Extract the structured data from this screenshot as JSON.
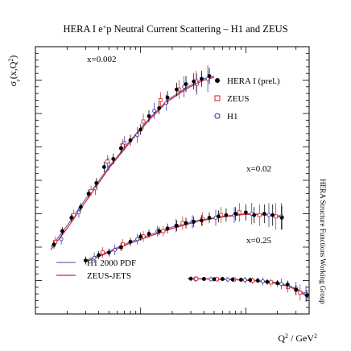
{
  "chart_data": {
    "type": "scatter",
    "title": "HERA I e⁺p Neutral Current Scattering – H1 and ZEUS",
    "title_parts": {
      "pre": "HERA I e",
      "sup": "+",
      "post": "p Neutral Current Scattering – H1 and ZEUS"
    },
    "ylabel": {
      "base": "σ",
      "sub": "r",
      "post": "(x,Q",
      "sup": "2",
      "close": ")"
    },
    "xlabel": {
      "base": "Q",
      "sup": "2",
      "post": " / GeV",
      "sup2": "2"
    },
    "side_label": "HERA Structure Functions Working Group",
    "xscale": "log",
    "xlim": [
      1,
      400
    ],
    "ylim": [
      0,
      1
    ],
    "grid": false,
    "legend_position": "top-right",
    "legend": [
      "HERA I (prel.)",
      "ZEUS",
      "H1"
    ],
    "curve_legend": [
      "H1 2000 PDF",
      "ZEUS-JETS"
    ],
    "annotations": [
      "x=0.002",
      "x=0.02",
      "x=0.25"
    ],
    "colors": {
      "hera": "#000000",
      "zeus": "#cc2222",
      "h1": "#2222aa",
      "h1_pdf_line": "#6b6bb8",
      "zeus_jets_line": "#dd2233"
    },
    "bins": [
      {
        "label": "x=0.002",
        "hera": {
          "x": [
            1.5,
            1.8,
            2.2,
            2.7,
            3.2,
            3.8,
            4.5,
            5.5,
            6.5,
            8,
            10,
            12,
            15,
            18,
            22,
            27,
            32,
            38,
            45
          ],
          "y": [
            0.26,
            0.31,
            0.36,
            0.4,
            0.45,
            0.49,
            0.55,
            0.58,
            0.62,
            0.65,
            0.69,
            0.74,
            0.77,
            0.81,
            0.84,
            0.86,
            0.87,
            0.88,
            0.89
          ],
          "err": [
            0.015,
            0.015,
            0.015,
            0.015,
            0.015,
            0.018,
            0.02,
            0.02,
            0.02,
            0.02,
            0.02,
            0.022,
            0.022,
            0.024,
            0.025,
            0.03,
            0.03,
            0.03,
            0.03
          ]
        },
        "zeus": {
          "x": [
            1.6,
            2.4,
            3.5,
            5,
            7,
            11,
            16,
            24,
            35
          ],
          "y": [
            0.27,
            0.37,
            0.46,
            0.57,
            0.63,
            0.72,
            0.8,
            0.84,
            0.87
          ],
          "err": [
            0.02,
            0.02,
            0.02,
            0.025,
            0.025,
            0.03,
            0.03,
            0.035,
            0.04
          ]
        },
        "h1": {
          "x": [
            1.7,
            2.5,
            3.6,
            4.8,
            6.8,
            9,
            13,
            17,
            25,
            33,
            42
          ],
          "y": [
            0.28,
            0.38,
            0.47,
            0.56,
            0.64,
            0.67,
            0.76,
            0.79,
            0.85,
            0.86,
            0.88
          ],
          "err": [
            0.02,
            0.02,
            0.025,
            0.025,
            0.025,
            0.03,
            0.03,
            0.03,
            0.04,
            0.04,
            0.05
          ]
        },
        "h1_pdf": {
          "x": [
            1.4,
            2,
            3,
            5,
            8,
            12,
            18,
            28,
            40,
            50
          ],
          "y": [
            0.25,
            0.33,
            0.43,
            0.55,
            0.65,
            0.73,
            0.8,
            0.85,
            0.88,
            0.89
          ]
        },
        "zeus_jets": {
          "x": [
            1.4,
            2,
            3,
            5,
            8,
            12,
            18,
            28,
            40,
            50
          ],
          "y": [
            0.24,
            0.32,
            0.42,
            0.545,
            0.645,
            0.725,
            0.795,
            0.845,
            0.875,
            0.885
          ]
        }
      },
      {
        "label": "x=0.02",
        "hera": {
          "x": [
            3,
            4,
            5,
            6.5,
            8,
            10,
            12,
            15,
            18,
            22,
            27,
            32,
            38,
            45,
            55,
            65,
            80,
            100,
            120,
            150,
            180,
            220
          ],
          "y": [
            0.2,
            0.22,
            0.23,
            0.25,
            0.27,
            0.29,
            0.3,
            0.31,
            0.32,
            0.33,
            0.34,
            0.345,
            0.35,
            0.36,
            0.365,
            0.37,
            0.375,
            0.38,
            0.37,
            0.375,
            0.37,
            0.36
          ],
          "err": [
            0.015,
            0.015,
            0.015,
            0.015,
            0.015,
            0.015,
            0.015,
            0.015,
            0.018,
            0.02,
            0.02,
            0.02,
            0.02,
            0.02,
            0.022,
            0.025,
            0.025,
            0.03,
            0.03,
            0.035,
            0.04,
            0.045
          ]
        },
        "zeus": {
          "x": [
            4.5,
            7,
            11,
            17,
            26,
            40,
            60,
            90,
            140,
            200
          ],
          "y": [
            0.23,
            0.26,
            0.29,
            0.31,
            0.34,
            0.355,
            0.37,
            0.38,
            0.37,
            0.365
          ],
          "err": [
            0.02,
            0.02,
            0.02,
            0.02,
            0.025,
            0.025,
            0.03,
            0.035,
            0.04,
            0.05
          ]
        },
        "h1": {
          "x": [
            3.5,
            5.5,
            9,
            14,
            21,
            30,
            50,
            75,
            110,
            160,
            210
          ],
          "y": [
            0.21,
            0.24,
            0.28,
            0.31,
            0.33,
            0.345,
            0.36,
            0.37,
            0.375,
            0.37,
            0.365
          ],
          "err": [
            0.02,
            0.02,
            0.02,
            0.02,
            0.025,
            0.025,
            0.03,
            0.03,
            0.04,
            0.045,
            0.05
          ]
        },
        "h1_pdf": {
          "x": [
            3,
            5,
            8,
            12,
            20,
            35,
            60,
            100,
            160,
            230
          ],
          "y": [
            0.2,
            0.235,
            0.27,
            0.295,
            0.325,
            0.35,
            0.365,
            0.375,
            0.372,
            0.365
          ]
        },
        "zeus_jets": {
          "x": [
            3,
            5,
            8,
            12,
            20,
            35,
            60,
            100,
            160,
            230
          ],
          "y": [
            0.195,
            0.23,
            0.265,
            0.29,
            0.32,
            0.347,
            0.363,
            0.373,
            0.37,
            0.362
          ]
        }
      },
      {
        "label": "x=0.25",
        "hera": {
          "x": [
            30,
            40,
            50,
            60,
            75,
            90,
            110,
            130,
            160,
            200,
            250,
            300,
            380
          ],
          "y": [
            0.132,
            0.131,
            0.13,
            0.131,
            0.129,
            0.128,
            0.127,
            0.125,
            0.12,
            0.115,
            0.11,
            0.09,
            0.07
          ],
          "err": [
            0.008,
            0.008,
            0.008,
            0.008,
            0.008,
            0.008,
            0.009,
            0.01,
            0.01,
            0.012,
            0.015,
            0.018,
            0.02
          ]
        },
        "zeus": {
          "x": [
            35,
            55,
            80,
            120,
            180,
            260,
            340
          ],
          "y": [
            0.132,
            0.13,
            0.129,
            0.125,
            0.118,
            0.1,
            0.08
          ],
          "err": [
            0.01,
            0.01,
            0.01,
            0.012,
            0.015,
            0.02,
            0.03
          ]
        },
        "h1": {
          "x": [
            32,
            45,
            65,
            95,
            140,
            210,
            290,
            360
          ],
          "y": [
            0.131,
            0.13,
            0.129,
            0.127,
            0.122,
            0.112,
            0.095,
            0.075
          ],
          "err": [
            0.01,
            0.01,
            0.01,
            0.012,
            0.015,
            0.02,
            0.025,
            0.03
          ]
        },
        "h1_pdf": {
          "x": [
            28,
            50,
            80,
            120,
            180,
            250,
            320,
            400
          ],
          "y": [
            0.133,
            0.131,
            0.129,
            0.126,
            0.12,
            0.108,
            0.09,
            0.065
          ]
        },
        "zeus_jets": {
          "x": [
            28,
            50,
            80,
            120,
            180,
            250,
            320,
            400
          ],
          "y": [
            0.132,
            0.13,
            0.128,
            0.124,
            0.117,
            0.104,
            0.086,
            0.06
          ]
        }
      }
    ]
  }
}
